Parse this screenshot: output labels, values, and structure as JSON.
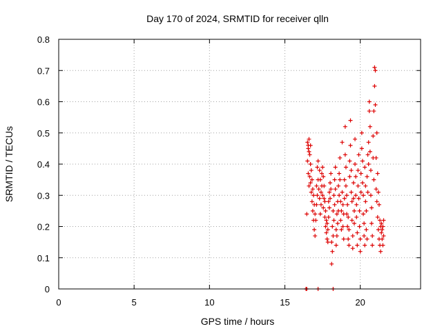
{
  "chart_data": {
    "type": "scatter",
    "title": "Day 170 of 2024, SRMTID for receiver qlln",
    "xlabel": "GPS time / hours",
    "ylabel": "SRMTID / TECUs",
    "xlim": [
      0,
      24
    ],
    "ylim": [
      0,
      0.8
    ],
    "xticks": [
      0,
      5,
      10,
      15,
      20
    ],
    "xtick_labels": [
      "0",
      "5",
      "10",
      "15",
      "20"
    ],
    "yticks": [
      0,
      0.1,
      0.2,
      0.3,
      0.4,
      0.5,
      0.6,
      0.7,
      0.8
    ],
    "ytick_labels": [
      "0",
      "0.1",
      "0.2",
      "0.3",
      "0.4",
      "0.5",
      "0.6",
      "0.7",
      "0.8"
    ],
    "grid": true,
    "legend": "none",
    "marker": "+",
    "color": "#dd0000",
    "series": [
      {
        "name": "SRMTID",
        "points": [
          [
            16.4,
            0.0
          ],
          [
            16.45,
            0.0
          ],
          [
            17.2,
            0.0
          ],
          [
            18.2,
            0.0
          ],
          [
            16.45,
            0.24
          ],
          [
            16.5,
            0.47
          ],
          [
            16.5,
            0.41
          ],
          [
            16.55,
            0.45
          ],
          [
            16.55,
            0.37
          ],
          [
            16.6,
            0.44
          ],
          [
            16.6,
            0.33
          ],
          [
            16.65,
            0.43
          ],
          [
            16.65,
            0.36
          ],
          [
            16.7,
            0.4
          ],
          [
            16.7,
            0.34
          ],
          [
            16.75,
            0.38
          ],
          [
            16.75,
            0.31
          ],
          [
            16.8,
            0.35
          ],
          [
            16.8,
            0.28
          ],
          [
            16.85,
            0.32
          ],
          [
            16.85,
            0.25
          ],
          [
            16.9,
            0.3
          ],
          [
            16.9,
            0.22
          ],
          [
            16.95,
            0.27
          ],
          [
            16.95,
            0.19
          ],
          [
            17.0,
            0.24
          ],
          [
            17.0,
            0.17
          ],
          [
            16.55,
            0.46
          ],
          [
            16.6,
            0.48
          ],
          [
            16.7,
            0.46
          ],
          [
            17.05,
            0.22
          ],
          [
            17.1,
            0.27
          ],
          [
            17.1,
            0.33
          ],
          [
            17.15,
            0.3
          ],
          [
            17.15,
            0.39
          ],
          [
            17.2,
            0.35
          ],
          [
            17.2,
            0.41
          ],
          [
            17.25,
            0.32
          ],
          [
            17.3,
            0.38
          ],
          [
            17.3,
            0.29
          ],
          [
            17.35,
            0.35
          ],
          [
            17.35,
            0.24
          ],
          [
            17.4,
            0.31
          ],
          [
            17.4,
            0.27
          ],
          [
            17.45,
            0.37
          ],
          [
            17.45,
            0.33
          ],
          [
            17.5,
            0.39
          ],
          [
            17.5,
            0.3
          ],
          [
            17.55,
            0.36
          ],
          [
            17.55,
            0.26
          ],
          [
            17.6,
            0.29
          ],
          [
            17.6,
            0.33
          ],
          [
            17.65,
            0.23
          ],
          [
            17.65,
            0.28
          ],
          [
            17.7,
            0.2
          ],
          [
            17.7,
            0.25
          ],
          [
            17.75,
            0.18
          ],
          [
            17.75,
            0.22
          ],
          [
            17.8,
            0.16
          ],
          [
            17.8,
            0.21
          ],
          [
            17.85,
            0.15
          ],
          [
            17.85,
            0.19
          ],
          [
            17.9,
            0.23
          ],
          [
            17.9,
            0.28
          ],
          [
            17.95,
            0.26
          ],
          [
            17.95,
            0.31
          ],
          [
            18.0,
            0.29
          ],
          [
            18.0,
            0.34
          ],
          [
            18.05,
            0.32
          ],
          [
            18.05,
            0.37
          ],
          [
            18.1,
            0.08
          ],
          [
            18.1,
            0.15
          ],
          [
            18.15,
            0.12
          ],
          [
            18.15,
            0.2
          ],
          [
            18.2,
            0.17
          ],
          [
            18.2,
            0.25
          ],
          [
            18.25,
            0.22
          ],
          [
            18.25,
            0.3
          ],
          [
            18.3,
            0.27
          ],
          [
            18.3,
            0.35
          ],
          [
            18.35,
            0.32
          ],
          [
            18.35,
            0.39
          ],
          [
            18.4,
            0.14
          ],
          [
            18.4,
            0.19
          ],
          [
            18.45,
            0.17
          ],
          [
            18.45,
            0.24
          ],
          [
            18.5,
            0.21
          ],
          [
            18.5,
            0.28
          ],
          [
            18.55,
            0.25
          ],
          [
            18.55,
            0.33
          ],
          [
            18.6,
            0.3
          ],
          [
            18.6,
            0.37
          ],
          [
            18.65,
            0.35
          ],
          [
            18.65,
            0.42
          ],
          [
            18.7,
            0.28
          ],
          [
            18.7,
            0.22
          ],
          [
            18.75,
            0.25
          ],
          [
            18.75,
            0.19
          ],
          [
            18.8,
            0.47
          ],
          [
            18.8,
            0.31
          ],
          [
            18.85,
            0.27
          ],
          [
            18.85,
            0.2
          ],
          [
            18.9,
            0.24
          ],
          [
            18.9,
            0.16
          ],
          [
            18.95,
            0.29
          ],
          [
            18.95,
            0.35
          ],
          [
            19.0,
            0.52
          ],
          [
            19.0,
            0.43
          ],
          [
            19.05,
            0.39
          ],
          [
            19.05,
            0.33
          ],
          [
            19.1,
            0.3
          ],
          [
            19.1,
            0.24
          ],
          [
            19.15,
            0.27
          ],
          [
            19.15,
            0.2
          ],
          [
            19.2,
            0.23
          ],
          [
            19.2,
            0.16
          ],
          [
            19.25,
            0.19
          ],
          [
            19.25,
            0.14
          ],
          [
            19.3,
            0.41
          ],
          [
            19.3,
            0.36
          ],
          [
            19.35,
            0.54
          ],
          [
            19.35,
            0.46
          ],
          [
            19.4,
            0.38
          ],
          [
            19.4,
            0.31
          ],
          [
            19.45,
            0.28
          ],
          [
            19.45,
            0.22
          ],
          [
            19.5,
            0.17
          ],
          [
            19.5,
            0.13
          ],
          [
            19.55,
            0.34
          ],
          [
            19.55,
            0.29
          ],
          [
            19.6,
            0.25
          ],
          [
            19.6,
            0.21
          ],
          [
            19.65,
            0.48
          ],
          [
            19.65,
            0.4
          ],
          [
            19.7,
            0.36
          ],
          [
            19.7,
            0.3
          ],
          [
            19.75,
            0.27
          ],
          [
            19.75,
            0.23
          ],
          [
            19.8,
            0.18
          ],
          [
            19.8,
            0.14
          ],
          [
            19.85,
            0.33
          ],
          [
            19.85,
            0.38
          ],
          [
            19.9,
            0.43
          ],
          [
            19.9,
            0.29
          ],
          [
            19.95,
            0.25
          ],
          [
            19.95,
            0.2
          ],
          [
            20.0,
            0.16
          ],
          [
            20.0,
            0.12
          ],
          [
            20.05,
            0.37
          ],
          [
            20.05,
            0.31
          ],
          [
            20.1,
            0.5
          ],
          [
            20.1,
            0.45
          ],
          [
            20.15,
            0.41
          ],
          [
            20.15,
            0.34
          ],
          [
            20.2,
            0.3
          ],
          [
            20.2,
            0.24
          ],
          [
            20.25,
            0.21
          ],
          [
            20.25,
            0.17
          ],
          [
            20.3,
            0.14
          ],
          [
            20.3,
            0.39
          ],
          [
            20.35,
            0.33
          ],
          [
            20.35,
            0.28
          ],
          [
            20.4,
            0.25
          ],
          [
            20.4,
            0.19
          ],
          [
            20.45,
            0.16
          ],
          [
            20.45,
            0.36
          ],
          [
            20.5,
            0.31
          ],
          [
            20.5,
            0.43
          ],
          [
            20.55,
            0.47
          ],
          [
            20.55,
            0.4
          ],
          [
            20.6,
            0.6
          ],
          [
            20.6,
            0.57
          ],
          [
            20.65,
            0.52
          ],
          [
            20.65,
            0.44
          ],
          [
            20.7,
            0.38
          ],
          [
            20.7,
            0.3
          ],
          [
            20.75,
            0.26
          ],
          [
            20.75,
            0.21
          ],
          [
            20.8,
            0.17
          ],
          [
            20.8,
            0.14
          ],
          [
            20.85,
            0.49
          ],
          [
            20.85,
            0.42
          ],
          [
            20.9,
            0.57
          ],
          [
            20.9,
            0.35
          ],
          [
            20.95,
            0.71
          ],
          [
            20.95,
            0.65
          ],
          [
            21.0,
            0.7
          ],
          [
            21.0,
            0.59
          ],
          [
            21.05,
            0.42
          ],
          [
            21.05,
            0.32
          ],
          [
            21.1,
            0.5
          ],
          [
            21.1,
            0.28
          ],
          [
            21.15,
            0.37
          ],
          [
            21.15,
            0.23
          ],
          [
            21.2,
            0.31
          ],
          [
            21.2,
            0.19
          ],
          [
            21.25,
            0.27
          ],
          [
            21.25,
            0.16
          ],
          [
            21.3,
            0.22
          ],
          [
            21.3,
            0.14
          ],
          [
            21.35,
            0.2
          ],
          [
            21.35,
            0.12
          ],
          [
            21.4,
            0.18
          ],
          [
            21.4,
            0.21
          ],
          [
            21.45,
            0.16
          ],
          [
            21.45,
            0.19
          ],
          [
            21.5,
            0.14
          ],
          [
            21.5,
            0.2
          ],
          [
            21.55,
            0.17
          ],
          [
            21.55,
            0.22
          ]
        ]
      }
    ]
  }
}
